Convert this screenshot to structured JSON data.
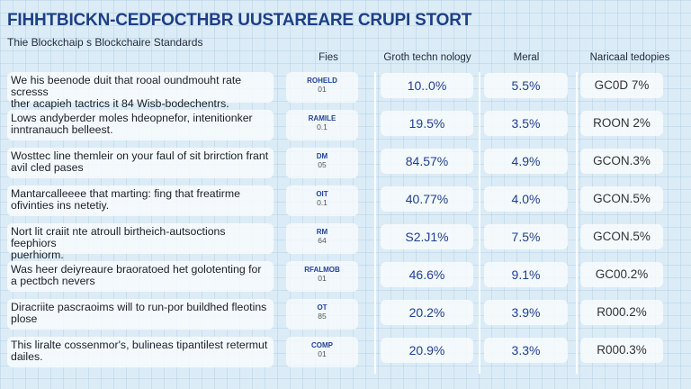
{
  "title": "FIHHTBICKN-CEDFOCTHBR UUSTAREARE CRUPI STORT",
  "subtitle": "Thie Blockchaip s Blockchaire Standards",
  "headers": {
    "fees": "Fies",
    "growth": "Groth techn nology",
    "meral": "Meral",
    "narical": "Naricaal tedopies"
  },
  "rows": [
    {
      "desc1": "We his beenode duit that rooal oundmouht rate scresss",
      "desc2": "ther acapieh tactrics it 84 Wisb-bodechentrs.",
      "code": "ROHELD",
      "num": "01",
      "growth": "10..0%",
      "meral": "5.5%",
      "narical": "GC0D 7%"
    },
    {
      "desc1": "Lows andyberder moles hdeopnefor, intenitionker",
      "desc2": "inntranauch belleest.",
      "code": "RAMILE",
      "num": "0.1",
      "growth": "19.5%",
      "meral": "3.5%",
      "narical": "ROON 2%"
    },
    {
      "desc1": "Wosttec line themleir on your faul of sit brirction frant",
      "desc2": "avil cled pases",
      "code": "DM",
      "num": "05",
      "growth": "84.57%",
      "meral": "4.9%",
      "narical": "GCON.3%"
    },
    {
      "desc1": "Mantarcalleeee that marting: fing that freatirme",
      "desc2": "ofivinties ins netetiy.",
      "code": "OIT",
      "num": "0.1",
      "growth": "40.77%",
      "meral": "4.0%",
      "narical": "GCON.5%"
    },
    {
      "desc1": "Nort lit craiit nte atroull birtheich-autsoctions feephiors",
      "desc2": "puerhiorm.",
      "code": "RM",
      "num": "64",
      "growth": "S2.J1%",
      "meral": "7.5%",
      "narical": "GCON.5%"
    },
    {
      "desc1": "Was heer deiyreaure braoratoed het golotenting for",
      "desc2": "a pectbch nevers",
      "code": "RFALMOB",
      "num": "01",
      "growth": "46.6%",
      "meral": "9.1%",
      "narical": "GC00.2%"
    },
    {
      "desc1": "Diracriite pascraoims will to run-por buildhed fleotins",
      "desc2": "plose",
      "code": "OT",
      "num": "85",
      "growth": "20.2%",
      "meral": "3.9%",
      "narical": "R000.2%"
    },
    {
      "desc1": "This liralte cossenmor's, bulineas tipantilest retermut",
      "desc2": "dailes.",
      "code": "COMP",
      "num": "01",
      "growth": "20.9%",
      "meral": "3.3%",
      "narical": "R000.3%"
    }
  ]
}
